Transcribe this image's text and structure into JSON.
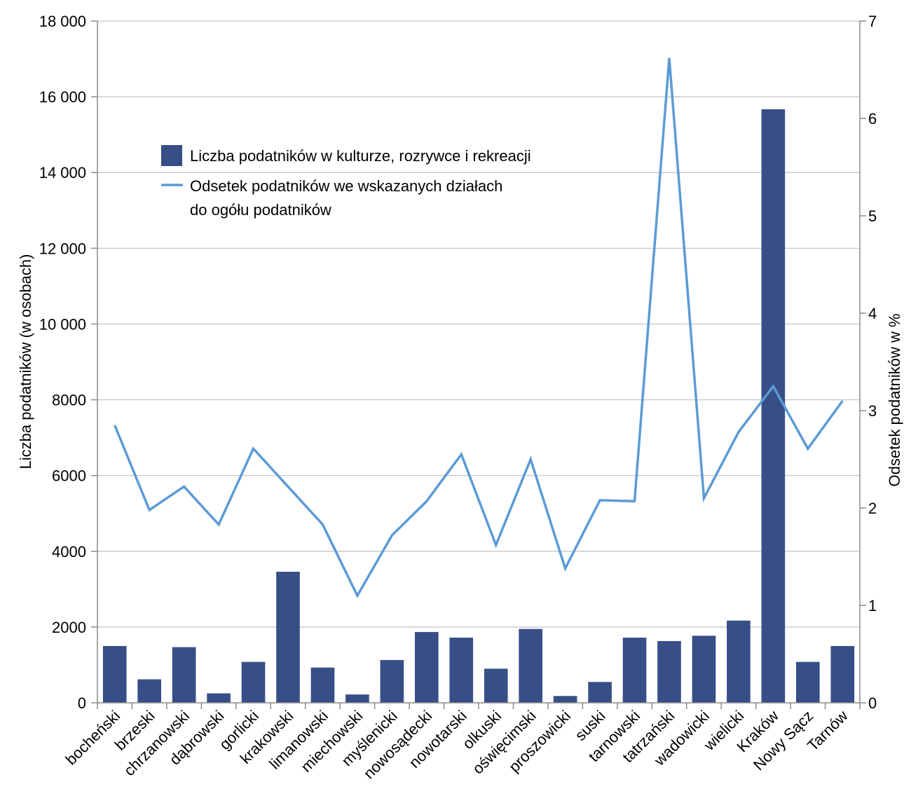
{
  "chart_data": {
    "type": "bar",
    "categories": [
      "bocheński",
      "brzeski",
      "chrzanowski",
      "dąbrowski",
      "gorlicki",
      "krakowski",
      "limanowski",
      "miechowski",
      "myślenicki",
      "nowosądecki",
      "nowotarski",
      "olkuski",
      "oświęcimski",
      "proszowicki",
      "suski",
      "tarnowski",
      "tatrzański",
      "wadowicki",
      "wielicki",
      "Kraków",
      "Nowy Sącz",
      "Tarnów"
    ],
    "series": [
      {
        "name": "Liczba podatników w kulturze, rozrywce i rekreacji",
        "type": "bar",
        "axis": "left",
        "color": "#374e86",
        "values": [
          1500,
          620,
          1470,
          250,
          1080,
          3460,
          930,
          220,
          1130,
          1870,
          1720,
          900,
          1950,
          180,
          550,
          1720,
          1630,
          1770,
          2170,
          15670,
          1080,
          1500
        ]
      },
      {
        "name": "Odsetek podatników we wskazanych działach do ogółu podatników",
        "name_lines": [
          "Odsetek podatników we wskazanych działach",
          "do ogółu podatników"
        ],
        "type": "line",
        "axis": "right",
        "color": "#5b9bd5",
        "values": [
          2.85,
          1.98,
          2.22,
          1.83,
          2.61,
          2.22,
          1.83,
          1.1,
          1.72,
          2.07,
          2.55,
          1.62,
          2.5,
          1.38,
          2.08,
          2.07,
          6.62,
          2.1,
          2.78,
          3.25,
          2.61,
          3.1
        ]
      }
    ],
    "y_left": {
      "label": "Liczba podatników (w osobach)",
      "ylim": [
        0,
        18000
      ],
      "ticks": [
        0,
        2000,
        4000,
        6000,
        8000,
        10000,
        12000,
        14000,
        16000,
        18000
      ],
      "tick_labels": [
        "0",
        "2000",
        "4000",
        "6000",
        "8000",
        "10 000",
        "12 000",
        "14 000",
        "16 000",
        "18 000"
      ]
    },
    "y_right": {
      "label": "Odsetek podatników w %",
      "ylim": [
        0,
        7
      ],
      "ticks": [
        0,
        1,
        2,
        3,
        4,
        5,
        6,
        7
      ],
      "tick_labels": [
        "0",
        "1",
        "2",
        "3",
        "4",
        "5",
        "6",
        "7"
      ]
    },
    "grid": true,
    "grid_color": "#c0c0c0",
    "legend_position": "top-left inside"
  }
}
